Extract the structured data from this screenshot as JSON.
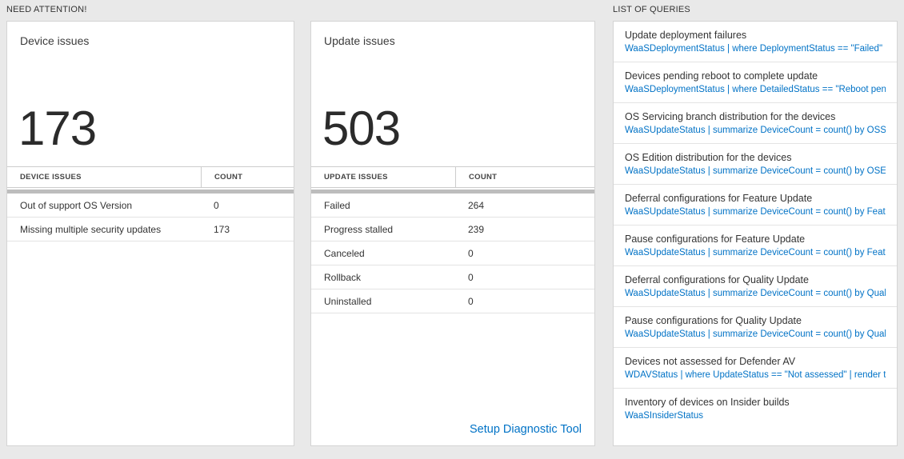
{
  "colors": {
    "accent_blue": "#0072c6",
    "page_background": "#e9e9e9",
    "card_background": "#ffffff"
  },
  "need_attention": {
    "header": "NEED ATTENTION!",
    "device_card": {
      "title": "Device issues",
      "big_number": "173",
      "table": {
        "col1_header": "DEVICE ISSUES",
        "col2_header": "COUNT",
        "rows": [
          {
            "label": "Out of support OS Version",
            "count": "0"
          },
          {
            "label": "Missing multiple security updates",
            "count": "173"
          }
        ]
      }
    },
    "update_card": {
      "title": "Update issues",
      "big_number": "503",
      "table": {
        "col1_header": "UPDATE ISSUES",
        "col2_header": "COUNT",
        "rows": [
          {
            "label": "Failed",
            "count": "264"
          },
          {
            "label": "Progress stalled",
            "count": "239"
          },
          {
            "label": "Canceled",
            "count": "0"
          },
          {
            "label": "Rollback",
            "count": "0"
          },
          {
            "label": "Uninstalled",
            "count": "0"
          }
        ]
      },
      "link_label": "Setup Diagnostic Tool"
    }
  },
  "queries": {
    "header": "LIST OF QUERIES",
    "items": [
      {
        "title": "Update deployment failures",
        "query": "WaaSDeploymentStatus | where DeploymentStatus == \"Failed\" |..."
      },
      {
        "title": "Devices pending reboot to complete update",
        "query": "WaaSDeploymentStatus | where DetailedStatus == \"Reboot pend..."
      },
      {
        "title": "OS Servicing branch distribution for the devices",
        "query": "WaaSUpdateStatus | summarize DeviceCount = count() by OSSer..."
      },
      {
        "title": "OS Edition distribution for the devices",
        "query": "WaaSUpdateStatus | summarize DeviceCount = count() by OSEdit..."
      },
      {
        "title": "Deferral configurations for Feature Update",
        "query": "WaaSUpdateStatus | summarize DeviceCount = count() by Featur..."
      },
      {
        "title": "Pause configurations for Feature Update",
        "query": "WaaSUpdateStatus | summarize DeviceCount = count() by Featur..."
      },
      {
        "title": "Deferral configurations for Quality Update",
        "query": "WaaSUpdateStatus | summarize DeviceCount = count() by Qualit..."
      },
      {
        "title": "Pause configurations for Quality Update",
        "query": "WaaSUpdateStatus | summarize DeviceCount = count() by Qualit..."
      },
      {
        "title": "Devices not assessed for Defender AV",
        "query": "WDAVStatus | where UpdateStatus == \"Not assessed\" | render ta..."
      },
      {
        "title": "Inventory of devices on Insider builds",
        "query": "WaaSInsiderStatus"
      }
    ]
  }
}
